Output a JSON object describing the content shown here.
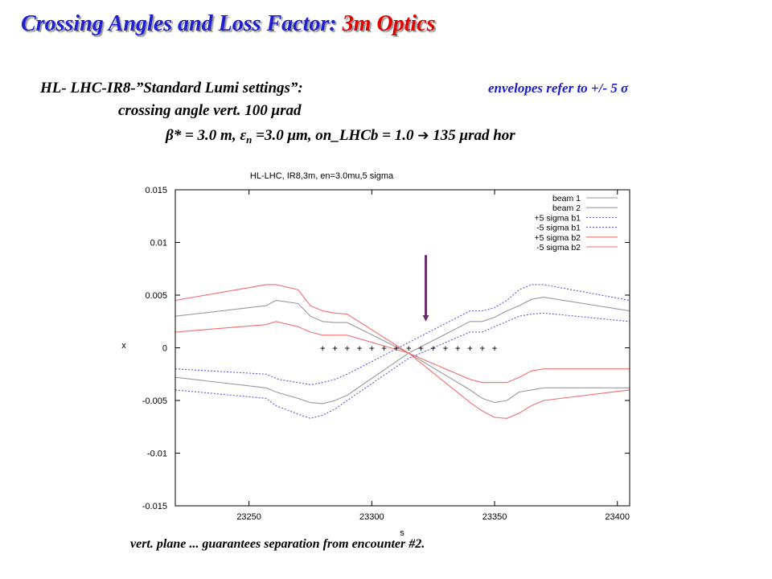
{
  "slide": {
    "title_main": "Crossing Angles and Loss Factor: ",
    "title_accent": "3m Optics",
    "line1": "HL- LHC-IR8-”Standard Lumi settings”:",
    "envelopes": "envelopes refer to +/- 5 σ",
    "line2": "crossing angle vert. 100 μrad",
    "line3_a": "β* = 3.0 m, ε",
    "line3_sub": "n",
    "line3_b": " =3.0 μm,  on_LHCb = 1.0  ",
    "arrow_glyph": "➔",
    "line3_c": " 135 μrad hor",
    "caption": "vert. plane ... guarantees separation from encounter #2."
  },
  "chart_data": {
    "type": "line",
    "title": "HL-LHC, IR8,3m, en=3.0mu,5 sigma",
    "xlabel": "s",
    "ylabel": "x",
    "xlim": [
      23220,
      23405
    ],
    "ylim": [
      -0.015,
      0.015
    ],
    "xticks": [
      23250,
      23300,
      23350,
      23400
    ],
    "xtick_labels": [
      "23250",
      "23300",
      "23350",
      "23400"
    ],
    "yticks": [
      -0.015,
      -0.01,
      -0.005,
      0,
      0.005,
      0.01,
      0.015
    ],
    "ytick_labels": [
      "-0.015",
      "-0.01",
      "-0.005",
      "0",
      "0.005",
      "0.01",
      "0.015"
    ],
    "legend_position": "top-right",
    "grid": false,
    "series": [
      {
        "name": "beam 1",
        "color": "#9a9a9a",
        "dash": "solid",
        "x": [
          23220,
          23257,
          23261,
          23270,
          23275,
          23280,
          23285,
          23290,
          23315,
          23340,
          23345,
          23350,
          23355,
          23360,
          23365,
          23370,
          23405
        ],
        "y": [
          -0.0028,
          -0.0038,
          -0.0042,
          -0.0048,
          -0.0052,
          -0.0053,
          -0.005,
          -0.0045,
          -0.0005,
          0.0025,
          0.0025,
          0.0029,
          0.0035,
          0.004,
          0.0046,
          0.0048,
          0.0035
        ]
      },
      {
        "name": "beam 2",
        "color": "#9a9a9a",
        "dash": "solid",
        "x": [
          23220,
          23257,
          23261,
          23270,
          23275,
          23280,
          23285,
          23290,
          23315,
          23340,
          23345,
          23350,
          23355,
          23360,
          23365,
          23370,
          23405
        ],
        "y": [
          0.003,
          0.004,
          0.0045,
          0.0042,
          0.003,
          0.0025,
          0.0024,
          0.0024,
          -0.0005,
          -0.004,
          -0.0048,
          -0.0052,
          -0.005,
          -0.0042,
          -0.004,
          -0.0038,
          -0.0038
        ]
      },
      {
        "name": "+5 sigma b1",
        "color": "#5b5be0",
        "dash": "dotted",
        "x": [
          23220,
          23257,
          23262,
          23270,
          23275,
          23280,
          23285,
          23290,
          23315,
          23340,
          23345,
          23350,
          23355,
          23360,
          23365,
          23370,
          23405
        ],
        "y": [
          -0.002,
          -0.0025,
          -0.003,
          -0.0033,
          -0.0035,
          -0.0033,
          -0.003,
          -0.0025,
          0.0005,
          0.0035,
          0.0035,
          0.0038,
          0.0045,
          0.0055,
          0.006,
          0.006,
          0.0045
        ]
      },
      {
        "name": "-5 sigma b1",
        "color": "#5b5be0",
        "dash": "dotted",
        "x": [
          23220,
          23257,
          23261,
          23270,
          23275,
          23280,
          23285,
          23290,
          23315,
          23340,
          23345,
          23350,
          23355,
          23360,
          23365,
          23370,
          23405
        ],
        "y": [
          -0.004,
          -0.0048,
          -0.0055,
          -0.0063,
          -0.0067,
          -0.0064,
          -0.0058,
          -0.005,
          -0.001,
          0.0015,
          0.0015,
          0.002,
          0.0025,
          0.003,
          0.0032,
          0.0033,
          0.0025
        ]
      },
      {
        "name": "+5 sigma b2",
        "color": "#f07070",
        "dash": "solid",
        "x": [
          23220,
          23257,
          23261,
          23270,
          23275,
          23280,
          23285,
          23290,
          23315,
          23340,
          23345,
          23350,
          23355,
          23360,
          23365,
          23370,
          23405
        ],
        "y": [
          0.0045,
          0.006,
          0.006,
          0.0055,
          0.004,
          0.0035,
          0.0033,
          0.0032,
          -0.0005,
          -0.003,
          -0.0033,
          -0.0033,
          -0.0033,
          -0.0028,
          -0.0022,
          -0.002,
          -0.002
        ]
      },
      {
        "name": "-5 sigma b2",
        "color": "#f07070",
        "dash": "solid",
        "x": [
          23220,
          23257,
          23261,
          23270,
          23275,
          23280,
          23285,
          23290,
          23315,
          23340,
          23345,
          23350,
          23355,
          23360,
          23365,
          23370,
          23405
        ],
        "y": [
          0.0015,
          0.0022,
          0.0025,
          0.002,
          0.0015,
          0.0012,
          0.0012,
          0.0012,
          -0.0005,
          -0.0052,
          -0.006,
          -0.0066,
          -0.0067,
          -0.0062,
          -0.0055,
          -0.005,
          -0.004
        ]
      }
    ],
    "markers": {
      "symbol": "+",
      "y": 0,
      "x": [
        23280,
        23285,
        23290,
        23295,
        23300,
        23305,
        23310,
        23315,
        23320,
        23325,
        23330,
        23335,
        23340,
        23345,
        23350
      ]
    },
    "annotation": {
      "type": "arrow",
      "color": "#6b2d6b",
      "x": 23322,
      "y_from": 0.0088,
      "y_to": 0.0028
    }
  }
}
